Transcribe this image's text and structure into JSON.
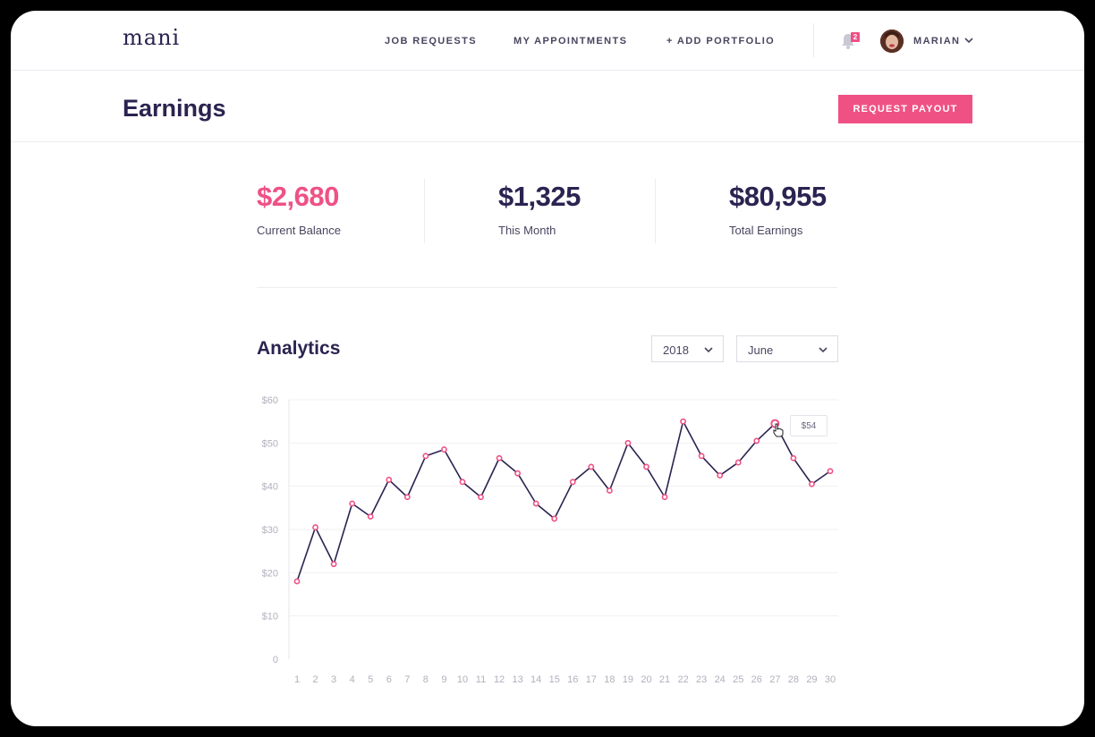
{
  "nav": {
    "logo": "mani",
    "links": [
      "JOB REQUESTS",
      "MY APPOINTMENTS",
      "+ ADD PORTFOLIO"
    ],
    "notification_count": "2",
    "user_name": "MARIAN"
  },
  "header": {
    "title": "Earnings",
    "payout_button": "REQUEST PAYOUT"
  },
  "stats": [
    {
      "value": "$2,680",
      "label": "Current Balance"
    },
    {
      "value": "$1,325",
      "label": "This Month"
    },
    {
      "value": "$80,955",
      "label": "Total Earnings"
    }
  ],
  "analytics": {
    "title": "Analytics",
    "year": "2018",
    "month": "June",
    "tooltip": "$54"
  },
  "colors": {
    "accent": "#ef5185",
    "navy": "#2b2350"
  },
  "chart_data": {
    "type": "line",
    "categories": [
      "1",
      "2",
      "3",
      "4",
      "5",
      "6",
      "7",
      "8",
      "9",
      "10",
      "11",
      "12",
      "13",
      "14",
      "15",
      "16",
      "17",
      "18",
      "19",
      "20",
      "21",
      "22",
      "23",
      "24",
      "25",
      "26",
      "27",
      "28",
      "29",
      "30"
    ],
    "values": [
      18,
      30.5,
      22,
      36,
      33,
      41.5,
      37.5,
      47,
      48.5,
      41,
      37.5,
      46.5,
      43,
      36,
      32.5,
      41,
      44.5,
      39,
      50,
      44.5,
      37.5,
      55,
      47,
      42.5,
      45.5,
      50.5,
      54.5,
      46.5,
      40.5,
      43.5
    ],
    "y_ticks": [
      "0",
      "$10",
      "$20",
      "$30",
      "$40",
      "$50",
      "$60"
    ],
    "ylim": [
      0,
      60
    ],
    "grid": true,
    "highlighted_index": 26
  }
}
